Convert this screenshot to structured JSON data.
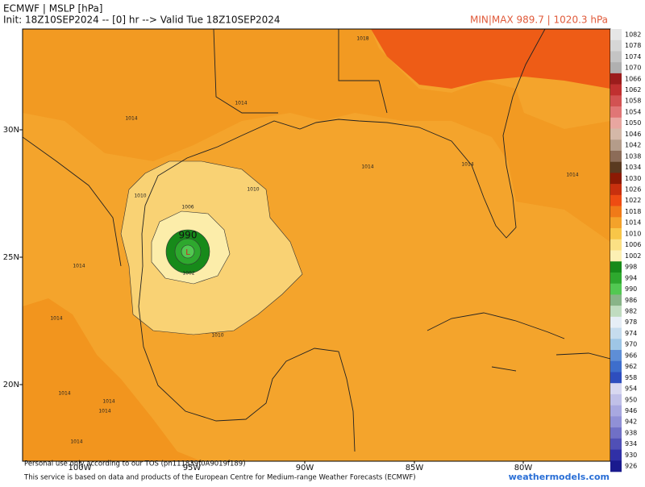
{
  "header": {
    "title": "ECMWF | MSLP [hPa]",
    "subtitle": "Init: 18Z10SEP2024 -- [0] hr --> Valid Tue 18Z10SEP2024",
    "minmax": "MIN|MAX 989.7 | 1020.3 hPa"
  },
  "map": {
    "lat_labels": [
      "30N",
      "25N",
      "20N"
    ],
    "lon_labels": [
      "100W",
      "95W",
      "90W",
      "85W",
      "80W"
    ],
    "center_label": "990",
    "low_marker": "L",
    "contour_labels": [
      "1018",
      "1014",
      "1014",
      "1014",
      "1014",
      "1014",
      "1010",
      "1010",
      "1006",
      "1002",
      "1010",
      "1014",
      "1014",
      "1014",
      "1014",
      "1014",
      "1014"
    ]
  },
  "colorbar": {
    "items": [
      {
        "label": "1082",
        "color": "#e6e6e6"
      },
      {
        "label": "1078",
        "color": "#d6d6d6"
      },
      {
        "label": "1074",
        "color": "#c4c4c4"
      },
      {
        "label": "1070",
        "color": "#b0b0b0"
      },
      {
        "label": "1066",
        "color": "#9c1c1c"
      },
      {
        "label": "1062",
        "color": "#c03030"
      },
      {
        "label": "1058",
        "color": "#d25252"
      },
      {
        "label": "1054",
        "color": "#e07676"
      },
      {
        "label": "1050",
        "color": "#e8a6a0"
      },
      {
        "label": "1046",
        "color": "#d4b8a8"
      },
      {
        "label": "1042",
        "color": "#b49c8a"
      },
      {
        "label": "1038",
        "color": "#8c6c58"
      },
      {
        "label": "1034",
        "color": "#5a3a20"
      },
      {
        "label": "1030",
        "color": "#8c1a04"
      },
      {
        "label": "1026",
        "color": "#c8300e"
      },
      {
        "label": "1022",
        "color": "#ee4c12"
      },
      {
        "label": "1018",
        "color": "#f07a18"
      },
      {
        "label": "1014",
        "color": "#f4a22a"
      },
      {
        "label": "1010",
        "color": "#f8c648"
      },
      {
        "label": "1006",
        "color": "#fbe084"
      },
      {
        "label": "1002",
        "color": "#fcf0b4"
      },
      {
        "label": "998",
        "color": "#178a1a"
      },
      {
        "label": "994",
        "color": "#2ea82e"
      },
      {
        "label": "990",
        "color": "#52c852"
      },
      {
        "label": "986",
        "color": "#88b488"
      },
      {
        "label": "982",
        "color": "#c0dcc0"
      },
      {
        "label": "978",
        "color": "#e6eef6"
      },
      {
        "label": "974",
        "color": "#c6dcee"
      },
      {
        "label": "970",
        "color": "#9ec6e6"
      },
      {
        "label": "966",
        "color": "#5e8ed6"
      },
      {
        "label": "962",
        "color": "#3e6ecc"
      },
      {
        "label": "958",
        "color": "#2e4ebe"
      },
      {
        "label": "954",
        "color": "#d8d8f0"
      },
      {
        "label": "950",
        "color": "#c0c0e8"
      },
      {
        "label": "946",
        "color": "#a8a8e0"
      },
      {
        "label": "942",
        "color": "#9090d6"
      },
      {
        "label": "938",
        "color": "#7070c6"
      },
      {
        "label": "934",
        "color": "#5050b6"
      },
      {
        "label": "930",
        "color": "#3030a6"
      },
      {
        "label": "926",
        "color": "#1a1a8e"
      }
    ]
  },
  "footer": {
    "tos": "Personal use only according to our TOS (pn111839f0A9019f189)",
    "credit": "This service is based on data and products of the European Centre for Medium-range Weather Forecasts (ECMWF)",
    "site": "weathermodels.com"
  }
}
